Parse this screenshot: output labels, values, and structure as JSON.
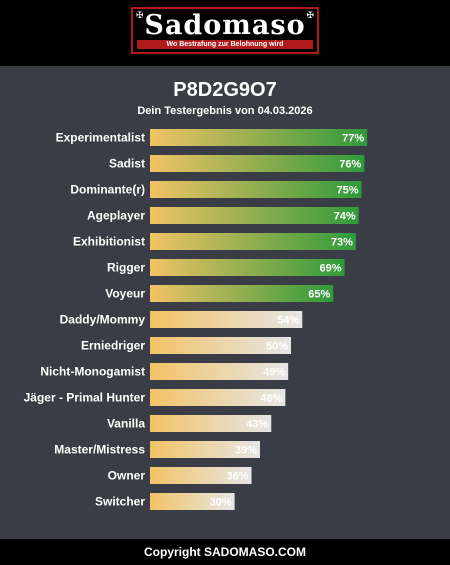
{
  "logo": {
    "word": "Sadomaso",
    "tagline": "Wo Bestrafung zur Belohnung wird"
  },
  "result": {
    "code": "P8D2G9O7",
    "subtitle": "Dein Testergebnis von 04.03.2026"
  },
  "colors": {
    "gradient_start": "#f2c366",
    "gradient_green": "#2f9a3a",
    "gradient_light": "#e6e6e6",
    "panel_bg": "#3a3d45"
  },
  "chart_data": {
    "type": "bar",
    "orientation": "horizontal",
    "categories": [
      "Experimentalist",
      "Sadist",
      "Dominante(r)",
      "Ageplayer",
      "Exhibitionist",
      "Rigger",
      "Voyeur",
      "Daddy/Mommy",
      "Erniedriger",
      "Nicht-Monogamist",
      "Jäger - Primal Hunter",
      "Vanilla",
      "Master/Mistress",
      "Owner",
      "Switcher"
    ],
    "values": [
      77,
      76,
      75,
      74,
      73,
      69,
      65,
      54,
      50,
      49,
      48,
      43,
      39,
      36,
      30
    ],
    "value_labels": [
      "77%",
      "76%",
      "75%",
      "74%",
      "73%",
      "69%",
      "65%",
      "54%",
      "50%",
      "49%",
      "48%",
      "43%",
      "39%",
      "36%",
      "30%"
    ],
    "xlim": [
      0,
      100
    ],
    "unit": "%"
  },
  "footer": {
    "copyright": "Copyright SADOMASO.COM"
  }
}
